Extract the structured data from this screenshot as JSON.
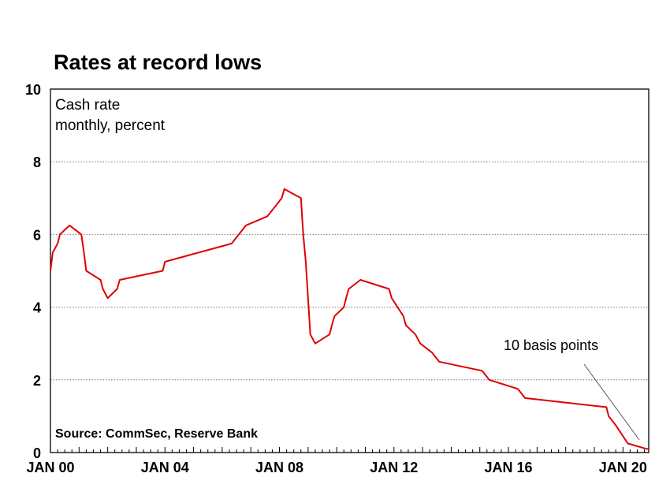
{
  "chart_data": {
    "type": "line",
    "title": "Rates at record lows",
    "subtitle": [
      "Cash rate",
      "monthly, percent"
    ],
    "source": "Source: CommSec, Reserve Bank",
    "annotation": "10 basis points",
    "xlabel": "",
    "ylabel": "",
    "ylim": [
      0,
      10
    ],
    "xlim": [
      2000.0,
      2020.9
    ],
    "yticks": [
      0,
      2,
      4,
      6,
      8,
      10
    ],
    "xticks": [
      {
        "value": 2000,
        "label": "JAN 00"
      },
      {
        "value": 2004,
        "label": "JAN 04"
      },
      {
        "value": 2008,
        "label": "JAN 08"
      },
      {
        "value": 2012,
        "label": "JAN 12"
      },
      {
        "value": 2016,
        "label": "JAN 16"
      },
      {
        "value": 2020,
        "label": "JAN 20"
      }
    ],
    "grid": "horizontal dotted",
    "line_color": "#e00000",
    "series": [
      {
        "points": [
          [
            2000.0,
            5.0
          ],
          [
            2000.08,
            5.5
          ],
          [
            2000.25,
            5.75
          ],
          [
            2000.33,
            6.0
          ],
          [
            2000.67,
            6.25
          ],
          [
            2001.08,
            6.0
          ],
          [
            2001.17,
            5.5
          ],
          [
            2001.25,
            5.0
          ],
          [
            2001.75,
            4.75
          ],
          [
            2001.83,
            4.5
          ],
          [
            2002.0,
            4.25
          ],
          [
            2002.33,
            4.5
          ],
          [
            2002.42,
            4.75
          ],
          [
            2003.92,
            5.0
          ],
          [
            2004.0,
            5.25
          ],
          [
            2005.17,
            5.5
          ],
          [
            2006.33,
            5.75
          ],
          [
            2006.58,
            6.0
          ],
          [
            2006.83,
            6.25
          ],
          [
            2007.58,
            6.5
          ],
          [
            2007.83,
            6.75
          ],
          [
            2008.08,
            7.0
          ],
          [
            2008.17,
            7.25
          ],
          [
            2008.75,
            7.0
          ],
          [
            2008.83,
            6.0
          ],
          [
            2008.92,
            5.25
          ],
          [
            2009.0,
            4.25
          ],
          [
            2009.08,
            3.25
          ],
          [
            2009.25,
            3.0
          ],
          [
            2009.75,
            3.25
          ],
          [
            2009.83,
            3.5
          ],
          [
            2009.92,
            3.75
          ],
          [
            2010.25,
            4.0
          ],
          [
            2010.33,
            4.25
          ],
          [
            2010.42,
            4.5
          ],
          [
            2010.83,
            4.75
          ],
          [
            2011.83,
            4.5
          ],
          [
            2011.92,
            4.25
          ],
          [
            2012.33,
            3.75
          ],
          [
            2012.42,
            3.5
          ],
          [
            2012.75,
            3.25
          ],
          [
            2012.92,
            3.0
          ],
          [
            2013.33,
            2.75
          ],
          [
            2013.58,
            2.5
          ],
          [
            2015.08,
            2.25
          ],
          [
            2015.33,
            2.0
          ],
          [
            2016.33,
            1.75
          ],
          [
            2016.58,
            1.5
          ],
          [
            2019.42,
            1.25
          ],
          [
            2019.5,
            1.0
          ],
          [
            2019.75,
            0.75
          ],
          [
            2020.17,
            0.25
          ],
          [
            2020.83,
            0.1
          ]
        ]
      }
    ]
  }
}
